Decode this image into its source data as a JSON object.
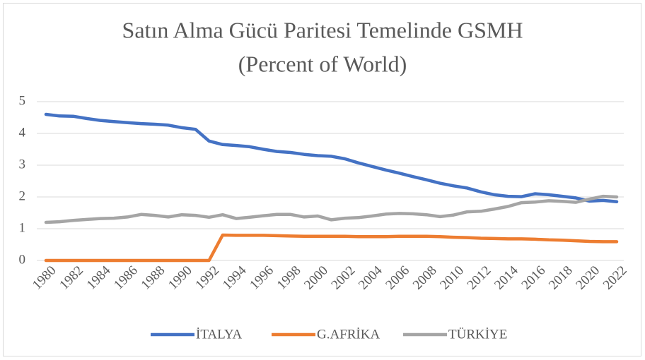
{
  "chart_data": {
    "type": "line",
    "title": "Satın Alma Gücü Paritesi Temelinde GSMH",
    "subtitle": "(Percent of World)",
    "x": [
      1980,
      1981,
      1982,
      1983,
      1984,
      1985,
      1986,
      1987,
      1988,
      1989,
      1990,
      1991,
      1992,
      1993,
      1994,
      1995,
      1996,
      1997,
      1998,
      1999,
      2000,
      2001,
      2002,
      2003,
      2004,
      2005,
      2006,
      2007,
      2008,
      2009,
      2010,
      2011,
      2012,
      2013,
      2014,
      2015,
      2016,
      2017,
      2018,
      2019,
      2020,
      2021,
      2022
    ],
    "xlim": [
      1980,
      2022
    ],
    "xticks": [
      1980,
      1982,
      1984,
      1986,
      1988,
      1990,
      1992,
      1994,
      1996,
      1998,
      2000,
      2002,
      2004,
      2006,
      2008,
      2010,
      2012,
      2014,
      2016,
      2018,
      2020,
      2022
    ],
    "ylim": [
      0,
      5
    ],
    "yticks": [
      0,
      1,
      2,
      3,
      4,
      5
    ],
    "grid": true,
    "legend": "bottom",
    "series": [
      {
        "name": "İTALYA",
        "color": "#4472c4",
        "values": [
          4.6,
          4.55,
          4.54,
          4.47,
          4.41,
          4.37,
          4.34,
          4.31,
          4.29,
          4.26,
          4.18,
          4.13,
          3.76,
          3.65,
          3.62,
          3.58,
          3.5,
          3.43,
          3.4,
          3.34,
          3.3,
          3.28,
          3.2,
          3.07,
          2.96,
          2.85,
          2.75,
          2.64,
          2.54,
          2.43,
          2.35,
          2.28,
          2.16,
          2.07,
          2.02,
          2.01,
          2.1,
          2.07,
          2.02,
          1.97,
          1.87,
          1.89,
          1.85
        ]
      },
      {
        "name": "G.AFRİKA",
        "color": "#ed7d31",
        "values": [
          0,
          0,
          0,
          0,
          0,
          0,
          0,
          0,
          0,
          0,
          0,
          0,
          0,
          0.8,
          0.79,
          0.79,
          0.79,
          0.78,
          0.77,
          0.76,
          0.76,
          0.76,
          0.76,
          0.75,
          0.75,
          0.75,
          0.76,
          0.76,
          0.76,
          0.75,
          0.73,
          0.72,
          0.7,
          0.69,
          0.68,
          0.68,
          0.67,
          0.65,
          0.64,
          0.62,
          0.6,
          0.59,
          0.59
        ]
      },
      {
        "name": "TÜRKİYE",
        "color": "#a5a5a5",
        "values": [
          1.2,
          1.22,
          1.26,
          1.29,
          1.32,
          1.33,
          1.37,
          1.45,
          1.42,
          1.37,
          1.44,
          1.42,
          1.36,
          1.44,
          1.32,
          1.36,
          1.41,
          1.45,
          1.45,
          1.37,
          1.4,
          1.28,
          1.33,
          1.35,
          1.4,
          1.46,
          1.48,
          1.47,
          1.44,
          1.38,
          1.43,
          1.53,
          1.55,
          1.62,
          1.7,
          1.82,
          1.84,
          1.88,
          1.86,
          1.83,
          1.93,
          2.02,
          2.0
        ]
      }
    ]
  }
}
